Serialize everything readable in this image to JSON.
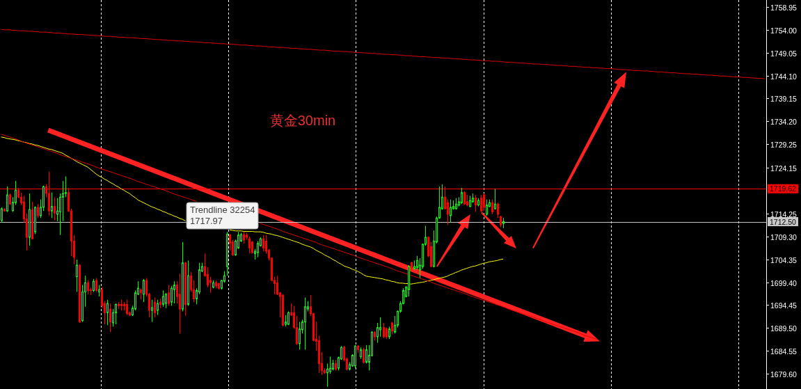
{
  "chart_data": {
    "type": "candlestick",
    "title": "黄金30min",
    "annotations": [
      "Trendline 32254\n1717.97"
    ],
    "categories": [
      null,
      null,
      null,
      null,
      null,
      null,
      null,
      null,
      null,
      null,
      null,
      null,
      null,
      null,
      null,
      null,
      null,
      null,
      null,
      null,
      null,
      null,
      null,
      null,
      null,
      null,
      null,
      null,
      null,
      null,
      null,
      null,
      null,
      null,
      null,
      null,
      null,
      null,
      null,
      null,
      null,
      null,
      null,
      null,
      null,
      null,
      null,
      null,
      null,
      null,
      null,
      null,
      null,
      null,
      null,
      null,
      null,
      null,
      null,
      null,
      null,
      null,
      null,
      null,
      null,
      null,
      null,
      null,
      null,
      null,
      null,
      null,
      null,
      null,
      null,
      null,
      null,
      null,
      null,
      null,
      null,
      null,
      null,
      null,
      null,
      null,
      null,
      null,
      null,
      null,
      null,
      null,
      null,
      null,
      null,
      null,
      null,
      null,
      null,
      null,
      null,
      null,
      null,
      null,
      null,
      null,
      null,
      null,
      null,
      null,
      null,
      null,
      null,
      null,
      null,
      null,
      null,
      null,
      null,
      null,
      null,
      null,
      null,
      null,
      null,
      null,
      null,
      null,
      null,
      null,
      null,
      null,
      null,
      null,
      null,
      null,
      null,
      null,
      null,
      null,
      null,
      null,
      null,
      null,
      null,
      null,
      null,
      null,
      null,
      null,
      null,
      null,
      null,
      null,
      null,
      null,
      null,
      null,
      null,
      null,
      null,
      null,
      null,
      null,
      null,
      null,
      null,
      null,
      null,
      null,
      null,
      null,
      null,
      null,
      null,
      null,
      null,
      null,
      null,
      null,
      null,
      null,
      null,
      null,
      null,
      null,
      null,
      null,
      null,
      null,
      null,
      null,
      null,
      null,
      null,
      null,
      null,
      null,
      null,
      null,
      null,
      null,
      null,
      null,
      null,
      null,
      null,
      null,
      null,
      null,
      null,
      null,
      null,
      null,
      null,
      null,
      null,
      null,
      null,
      null,
      null,
      null,
      null,
      null,
      null,
      null,
      null,
      null,
      null,
      null,
      null,
      null,
      null,
      null,
      null,
      null,
      null,
      null,
      null,
      null,
      null,
      null,
      null,
      null,
      null,
      null,
      null,
      null,
      null,
      null,
      null,
      null,
      null,
      null,
      null,
      null,
      null,
      null,
      null,
      null,
      null,
      null,
      null,
      null,
      null,
      null,
      null,
      null,
      null,
      null,
      null,
      null,
      null,
      null,
      null
    ],
    "ohlc": [
      [
        1712.8,
        1715.6,
        1712.3,
        1715.3
      ],
      [
        1715.2,
        1715.4,
        1714.7,
        1714.8
      ],
      [
        1714.8,
        1720.1,
        1714.6,
        1718.3
      ],
      [
        1718.3,
        1718.6,
        1716.1,
        1716.3
      ],
      [
        1714.9,
        1717.8,
        1714.6,
        1716.7
      ],
      [
        1716.6,
        1721.3,
        1716.1,
        1719.3
      ],
      [
        1719.3,
        1719.8,
        1717.6,
        1717.8
      ],
      [
        1717.8,
        1718.8,
        1716.1,
        1716.6
      ],
      [
        1716.8,
        1718.1,
        1712.3,
        1713.1
      ],
      [
        1713.1,
        1714.3,
        1706.3,
        1709.1
      ],
      [
        1709.1,
        1718.6,
        1707.3,
        1715.1
      ],
      [
        1715.1,
        1716.8,
        1708.6,
        1708.8
      ],
      [
        1710.3,
        1715.8,
        1709.8,
        1715.6
      ],
      [
        1715.6,
        1716.3,
        1713.3,
        1713.8
      ],
      [
        1713.8,
        1717.3,
        1713.3,
        1715.6
      ],
      [
        1715.6,
        1720.3,
        1714.8,
        1720.1
      ],
      [
        1720.1,
        1720.6,
        1717.8,
        1718.6
      ],
      [
        1718.6,
        1723.3,
        1713.8,
        1714.8
      ],
      [
        1714.8,
        1718.8,
        1713.3,
        1715.8
      ],
      [
        1715.8,
        1717.8,
        1712.8,
        1714.3
      ],
      [
        1714.1,
        1717.6,
        1712.6,
        1714.8
      ],
      [
        1714.6,
        1718.6,
        1709.6,
        1717.8
      ],
      [
        1717.8,
        1721.3,
        1712.6,
        1718.6
      ],
      [
        1718.6,
        1722.3,
        1717.8,
        1718.8
      ],
      [
        1718.8,
        1719.8,
        1714.6,
        1714.8
      ],
      [
        1714.8,
        1715.3,
        1705.1,
        1708.3
      ],
      [
        1708.3,
        1709.6,
        1703.3,
        1704.8
      ],
      [
        1700.6,
        1704.3,
        1697.3,
        1703.1
      ],
      [
        1703.1,
        1703.3,
        1690.6,
        1690.8
      ],
      [
        1691.1,
        1698.8,
        1690.8,
        1697.3
      ],
      [
        1697.3,
        1700.8,
        1694.1,
        1699.3
      ],
      [
        1699.3,
        1699.8,
        1696.8,
        1697.6
      ],
      [
        1697.8,
        1698.3,
        1696.6,
        1697.6
      ],
      [
        1697.6,
        1700.1,
        1697.3,
        1699.6
      ],
      [
        1699.8,
        1700.3,
        1697.3,
        1697.6
      ],
      [
        1697.3,
        1698.8,
        1696.3,
        1697.8
      ],
      [
        1697.8,
        1698.3,
        1693.8,
        1694.3
      ],
      [
        1694.8,
        1695.3,
        1690.3,
        1692.8
      ],
      [
        1692.8,
        1695.6,
        1690.1,
        1694.8
      ],
      [
        1693.6,
        1694.8,
        1688.6,
        1690.8
      ],
      [
        1690.6,
        1693.6,
        1689.8,
        1692.8
      ],
      [
        1692.8,
        1694.8,
        1690.3,
        1694.6
      ],
      [
        1694.6,
        1695.1,
        1693.6,
        1694.3
      ],
      [
        1694.6,
        1695.6,
        1693.3,
        1694.3
      ],
      [
        1694.6,
        1695.1,
        1693.3,
        1694.3
      ],
      [
        1694.6,
        1695.6,
        1692.3,
        1692.6
      ],
      [
        1692.8,
        1693.1,
        1692.1,
        1692.3
      ],
      [
        1692.3,
        1694.3,
        1692.1,
        1693.8
      ],
      [
        1693.6,
        1697.6,
        1693.3,
        1697.1
      ],
      [
        1696.8,
        1699.6,
        1696.6,
        1698.1
      ],
      [
        1697.8,
        1698.1,
        1695.6,
        1697.1
      ],
      [
        1696.8,
        1700.1,
        1695.1,
        1699.8
      ],
      [
        1699.8,
        1700.3,
        1696.3,
        1696.8
      ],
      [
        1696.8,
        1697.1,
        1691.8,
        1693.3
      ],
      [
        1693.3,
        1695.6,
        1690.8,
        1693.9
      ],
      [
        1695.1,
        1696.1,
        1691.8,
        1692.8
      ],
      [
        1693.3,
        1695.6,
        1692.3,
        1694.8
      ],
      [
        1695.1,
        1695.8,
        1693.8,
        1694.6
      ],
      [
        1694.6,
        1697.6,
        1694.1,
        1696.3
      ],
      [
        1694.8,
        1697.1,
        1693.8,
        1696.8
      ],
      [
        1697.1,
        1698.8,
        1694.3,
        1694.8
      ],
      [
        1695.1,
        1698.6,
        1694.3,
        1698.1
      ],
      [
        1697.8,
        1699.6,
        1694.8,
        1698.8
      ],
      [
        1698.8,
        1699.6,
        1694.8,
        1696.3
      ],
      [
        1696.8,
        1701.3,
        1688.3,
        1693.6
      ],
      [
        1693.6,
        1708.1,
        1693.1,
        1703.6
      ],
      [
        1703.6,
        1703.8,
        1692.1,
        1694.6
      ],
      [
        1694.6,
        1704.1,
        1694.3,
        1700.8
      ],
      [
        1700.8,
        1701.6,
        1697.3,
        1697.8
      ],
      [
        1697.8,
        1699.8,
        1695.1,
        1695.8
      ],
      [
        1695.8,
        1698.1,
        1694.6,
        1697.6
      ],
      [
        1697.3,
        1703.6,
        1696.8,
        1702.1
      ],
      [
        1701.8,
        1703.6,
        1701.6,
        1702.8
      ],
      [
        1702.8,
        1705.6,
        1700.6,
        1700.8
      ],
      [
        1701.1,
        1702.6,
        1698.3,
        1698.8
      ],
      [
        1699.8,
        1700.6,
        1697.1,
        1699.3
      ],
      [
        1698.3,
        1699.8,
        1698.1,
        1699.3
      ],
      [
        1699.3,
        1699.8,
        1698.1,
        1698.6
      ],
      [
        1699.1,
        1699.3,
        1697.8,
        1698.1
      ],
      [
        1698.1,
        1699.8,
        1697.8,
        1699.8
      ],
      [
        1699.6,
        1701.8,
        1699.3,
        1700.8
      ],
      [
        1702.8,
        1710.3,
        1700.8,
        1709.8
      ],
      [
        1709.6,
        1709.8,
        1706.3,
        1707.8
      ],
      [
        1708.1,
        1708.6,
        1705.1,
        1705.3
      ],
      [
        1705.3,
        1708.6,
        1705.1,
        1708.3
      ],
      [
        1706.8,
        1710.3,
        1706.6,
        1709.6
      ],
      [
        1708.3,
        1710.1,
        1708.1,
        1709.7
      ],
      [
        1709.7,
        1710.3,
        1707.8,
        1708.5
      ],
      [
        1709.6,
        1710.1,
        1708.6,
        1709.1
      ],
      [
        1708.8,
        1709.3,
        1705.6,
        1706.8
      ],
      [
        1708.1,
        1708.3,
        1705.6,
        1705.8
      ],
      [
        1705.6,
        1706.6,
        1704.3,
        1706.1
      ],
      [
        1705.8,
        1708.3,
        1704.8,
        1707.8
      ],
      [
        1707.3,
        1709.1,
        1707.1,
        1708.8
      ],
      [
        1708.8,
        1709.6,
        1706.1,
        1706.8
      ],
      [
        1708.3,
        1709.6,
        1705.6,
        1706.1
      ],
      [
        1706.3,
        1706.6,
        1704.1,
        1704.6
      ],
      [
        1704.6,
        1704.8,
        1699.6,
        1699.8
      ],
      [
        1699.8,
        1700.6,
        1696.8,
        1699.1
      ],
      [
        1699.3,
        1700.8,
        1696.6,
        1696.8
      ],
      [
        1697.1,
        1697.3,
        1691.8,
        1696.3
      ],
      [
        1696.6,
        1696.8,
        1689.8,
        1690.1
      ],
      [
        1690.3,
        1692.3,
        1689.8,
        1690.8
      ],
      [
        1690.3,
        1693.1,
        1690.1,
        1692.8
      ],
      [
        1692.8,
        1694.8,
        1692.1,
        1692.3
      ],
      [
        1692.8,
        1694.3,
        1689.3,
        1689.6
      ],
      [
        1689.6,
        1692.1,
        1685.8,
        1686.1
      ],
      [
        1686.1,
        1690.8,
        1684.8,
        1689.3
      ],
      [
        1689.1,
        1691.3,
        1688.3,
        1690.8
      ],
      [
        1690.8,
        1696.1,
        1684.8,
        1694.1
      ],
      [
        1693.6,
        1695.3,
        1693.1,
        1694.1
      ],
      [
        1694.1,
        1696.6,
        1692.1,
        1692.6
      ],
      [
        1692.6,
        1692.8,
        1686.6,
        1686.8
      ],
      [
        1687.1,
        1690.8,
        1684.6,
        1686.6
      ],
      [
        1686.8,
        1687.8,
        1679.8,
        1681.8
      ],
      [
        1681.8,
        1684.3,
        1679.3,
        1680.3
      ],
      [
        1680.3,
        1680.8,
        1679.6,
        1679.8
      ],
      [
        1679.8,
        1681.8,
        1676.8,
        1680.6
      ],
      [
        1680.1,
        1683.3,
        1679.6,
        1680.8
      ],
      [
        1680.6,
        1682.6,
        1680.3,
        1681.8
      ],
      [
        1681.8,
        1682.6,
        1680.3,
        1680.6
      ],
      [
        1680.8,
        1683.3,
        1680.3,
        1683.1
      ],
      [
        1682.8,
        1685.6,
        1682.6,
        1685.3
      ],
      [
        1685.3,
        1685.6,
        1682.3,
        1682.6
      ],
      [
        1682.8,
        1683.1,
        1680.3,
        1680.6
      ],
      [
        1680.6,
        1682.1,
        1680.3,
        1681.6
      ],
      [
        1681.3,
        1683.8,
        1681.1,
        1683.6
      ],
      [
        1681.3,
        1685.8,
        1680.8,
        1685.6
      ],
      [
        1685.6,
        1685.8,
        1684.1,
        1684.8
      ],
      [
        1683.3,
        1685.3,
        1682.8,
        1684.8
      ],
      [
        1684.8,
        1685.3,
        1681.8,
        1682.1
      ],
      [
        1682.1,
        1685.8,
        1681.8,
        1684.8
      ],
      [
        1682.1,
        1685.8,
        1680.3,
        1683.6
      ],
      [
        1683.6,
        1688.8,
        1683.3,
        1688.6
      ],
      [
        1688.6,
        1688.8,
        1686.8,
        1687.6
      ],
      [
        1687.6,
        1690.6,
        1686.3,
        1689.6
      ],
      [
        1689.1,
        1691.8,
        1687.6,
        1689.6
      ],
      [
        1689.6,
        1690.6,
        1687.3,
        1687.6
      ],
      [
        1689.3,
        1689.6,
        1687.1,
        1687.6
      ],
      [
        1687.6,
        1689.8,
        1687.1,
        1689.3
      ],
      [
        1690.6,
        1690.8,
        1688.1,
        1688.8
      ],
      [
        1688.6,
        1692.1,
        1688.3,
        1690.1
      ],
      [
        1690.1,
        1693.3,
        1689.6,
        1693.1
      ],
      [
        1693.1,
        1695.3,
        1692.8,
        1694.8
      ],
      [
        1694.8,
        1698.1,
        1694.6,
        1697.6
      ],
      [
        1696.3,
        1698.6,
        1696.1,
        1698.3
      ],
      [
        1697.8,
        1703.1,
        1696.3,
        1702.8
      ],
      [
        1703.6,
        1703.8,
        1702.1,
        1702.6
      ],
      [
        1702.3,
        1704.1,
        1702.1,
        1702.8
      ],
      [
        1702.6,
        1705.1,
        1702.1,
        1704.1
      ],
      [
        1702.1,
        1704.6,
        1700.3,
        1703.1
      ],
      [
        1702.8,
        1707.8,
        1702.3,
        1707.6
      ],
      [
        1707.6,
        1711.6,
        1707.3,
        1709.1
      ],
      [
        1709.1,
        1709.3,
        1704.8,
        1705.1
      ],
      [
        1707.1,
        1708.1,
        1702.6,
        1702.8
      ],
      [
        1702.8,
        1710.6,
        1702.6,
        1708.3
      ],
      [
        1708.1,
        1713.6,
        1707.8,
        1713.3
      ],
      [
        1713.3,
        1720.1,
        1713.1,
        1715.6
      ],
      [
        1715.3,
        1720.6,
        1715.1,
        1717.8
      ],
      [
        1717.8,
        1720.1,
        1715.1,
        1715.3
      ],
      [
        1716.6,
        1717.3,
        1711.8,
        1714.1
      ],
      [
        1713.8,
        1717.3,
        1712.3,
        1715.6
      ],
      [
        1715.3,
        1717.1,
        1715.1,
        1715.8
      ],
      [
        1715.3,
        1717.6,
        1715.1,
        1716.3
      ],
      [
        1716.1,
        1717.8,
        1715.8,
        1716.8
      ],
      [
        1716.6,
        1719.8,
        1716.3,
        1718.8
      ],
      [
        1718.8,
        1719.1,
        1716.1,
        1716.3
      ],
      [
        1716.8,
        1718.3,
        1715.8,
        1716.1
      ],
      [
        1715.8,
        1718.1,
        1715.6,
        1717.1
      ],
      [
        1716.8,
        1718.6,
        1716.6,
        1717.6
      ],
      [
        1717.6,
        1718.3,
        1714.6,
        1716.1
      ],
      [
        1716.1,
        1717.6,
        1715.8,
        1717.1
      ],
      [
        1717.6,
        1718.3,
        1714.6,
        1714.8
      ],
      [
        1718.3,
        1718.6,
        1714.8,
        1715.6
      ],
      [
        1714.1,
        1717.3,
        1713.8,
        1716.1
      ],
      [
        1715.8,
        1717.3,
        1715.6,
        1716.6
      ],
      [
        1716.6,
        1717.3,
        1714.1,
        1714.6
      ],
      [
        1715.3,
        1719.6,
        1715.1,
        1716.3
      ],
      [
        1716.3,
        1716.6,
        1713.3,
        1714.1
      ],
      [
        1713.6,
        1713.8,
        1711.3,
        1711.8
      ],
      [
        1712.1,
        1713.3,
        1711.1,
        1712.5
      ],
      null,
      null,
      null,
      null,
      null,
      null,
      null,
      null,
      null,
      null,
      null,
      null,
      null,
      null,
      null,
      null,
      null,
      null,
      null,
      null,
      null,
      null,
      null,
      null,
      null,
      null,
      null,
      null,
      null,
      null,
      null,
      null,
      null,
      null,
      null,
      null,
      null,
      null,
      null,
      null,
      null,
      null,
      null,
      null,
      null,
      null,
      null,
      null,
      null,
      null,
      null,
      null,
      null,
      null,
      null,
      null,
      null,
      null,
      null,
      null,
      null,
      null,
      null,
      null,
      null,
      null,
      null,
      null,
      null,
      null,
      null,
      null,
      null,
      null,
      null,
      null,
      null,
      null,
      null,
      null,
      null,
      null,
      null,
      null,
      null,
      null,
      null,
      null,
      null,
      null,
      null,
      null,
      null,
      null
    ],
    "colors": [
      "#00ff00",
      "#ff0000",
      "#00ff00",
      "#ff0000",
      "#00ff00",
      "#00ff00",
      "#ff0000",
      "#ff0000",
      "#ff0000",
      "#ff0000",
      "#00ff00",
      "#ff0000",
      "#00ff00",
      "#ff0000",
      "#00ff00",
      "#00ff00",
      "#ff0000",
      "#ff0000",
      "#00ff00",
      "#ff0000",
      "#00ff00",
      "#00ff00",
      "#00ff00",
      "#00ff00",
      "#ff0000",
      "#ff0000",
      "#ff0000",
      "#00ff00",
      "#ff0000",
      "#00ff00",
      "#00ff00",
      "#ff0000",
      "#ff0000",
      "#00ff00",
      "#ff0000",
      "#00ff00",
      "#ff0000",
      "#ff0000",
      "#00ff00",
      "#ff0000",
      "#00ff00",
      "#00ff00",
      "#ff0000",
      "#ff0000",
      "#ff0000",
      "#ff0000",
      "#ff0000",
      "#00ff00",
      "#00ff00",
      "#00ff00",
      "#ff0000",
      "#00ff00",
      "#ff0000",
      "#ff0000",
      "#00ff00",
      "#ff0000",
      "#00ff00",
      "#ff0000",
      "#00ff00",
      "#00ff00",
      "#ff0000",
      "#00ff00",
      "#00ff00",
      "#ff0000",
      "#ff0000",
      "#00ff00",
      "#ff0000",
      "#00ff00",
      "#ff0000",
      "#ff0000",
      "#00ff00",
      "#00ff00",
      "#00ff00",
      "#ff0000",
      "#ff0000",
      "#ff0000",
      "#00ff00",
      "#ff0000",
      "#ff0000",
      "#00ff00",
      "#00ff00",
      "#00ff00",
      "#ff0000",
      "#ff0000",
      "#00ff00",
      "#00ff00",
      "#00ff00",
      "#ff0000",
      "#ff0000",
      "#ff0000",
      "#ff0000",
      "#00ff00",
      "#00ff00",
      "#00ff00",
      "#ff0000",
      "#ff0000",
      "#ff0000",
      "#ff0000",
      "#ff0000",
      "#ff0000",
      "#ff0000",
      "#ff0000",
      "#00ff00",
      "#00ff00",
      "#ff0000",
      "#ff0000",
      "#ff0000",
      "#00ff00",
      "#00ff00",
      "#00ff00",
      "#00ff00",
      "#ff0000",
      "#ff0000",
      "#ff0000",
      "#ff0000",
      "#ff0000",
      "#ff0000",
      "#00ff00",
      "#00ff00",
      "#00ff00",
      "#ff0000",
      "#00ff00",
      "#00ff00",
      "#ff0000",
      "#ff0000",
      "#00ff00",
      "#00ff00",
      "#00ff00",
      "#ff0000",
      "#00ff00",
      "#ff0000",
      "#00ff00",
      "#00ff00",
      "#00ff00",
      "#ff0000",
      "#00ff00",
      "#00ff00",
      "#ff0000",
      "#ff0000",
      "#00ff00",
      "#ff0000",
      "#00ff00",
      "#00ff00",
      "#00ff00",
      "#00ff00",
      "#00ff00",
      "#00ff00",
      "#ff0000",
      "#00ff00",
      "#00ff00",
      "#00ff00",
      "#00ff00",
      "#00ff00",
      "#ff0000",
      "#ff0000",
      "#00ff00",
      "#00ff00",
      "#00ff00",
      "#00ff00",
      "#ff0000",
      "#ff0000",
      "#00ff00",
      "#00ff00",
      "#00ff00",
      "#00ff00",
      "#00ff00",
      "#ff0000",
      "#ff0000",
      "#00ff00",
      "#00ff00",
      "#ff0000",
      "#00ff00",
      "#ff0000",
      "#ff0000",
      "#00ff00",
      "#00ff00",
      "#ff0000",
      "#00ff00",
      "#ff0000",
      "#ff0000",
      "#00ff00",
      null,
      null,
      null,
      null,
      null,
      null,
      null,
      null,
      null,
      null,
      null,
      null,
      null,
      null,
      null,
      null,
      null,
      null,
      null,
      null,
      null,
      null,
      null,
      null,
      null,
      null,
      null,
      null,
      null,
      null,
      null,
      null,
      null,
      null,
      null,
      null,
      null,
      null,
      null,
      null,
      null,
      null,
      null,
      null,
      null,
      null,
      null,
      null,
      null,
      null,
      null,
      null,
      null,
      null,
      null,
      null,
      null,
      null,
      null,
      null,
      null,
      null,
      null,
      null,
      null,
      null,
      null,
      null,
      null,
      null,
      null,
      null,
      null,
      null,
      null,
      null,
      null,
      null,
      null,
      null,
      null,
      null,
      null,
      null,
      null,
      null,
      null,
      null,
      null,
      null,
      null,
      null,
      null,
      null
    ],
    "series": [
      {
        "type": "line",
        "color": "#ffff00",
        "values": [
          1730.8,
          1730.7,
          1730.5,
          1730.4,
          1730.3,
          1730.2,
          1730.0,
          1729.9,
          1729.7,
          1729.6,
          1729.4,
          1729.3,
          1729.1,
          1729.0,
          1728.8,
          1728.6,
          1728.4,
          1728.2,
          1728.1,
          1727.9,
          1727.7,
          1727.5,
          1727.3,
          1726.9,
          1726.6,
          1726.2,
          1725.9,
          1725.5,
          1725.2,
          1724.9,
          1724.6,
          1724.3,
          1723.8,
          1723.3,
          1722.8,
          1722.4,
          1722.1,
          1721.7,
          1721.4,
          1721.0,
          1720.7,
          1720.3,
          1720.0,
          1719.6,
          1719.3,
          1718.9,
          1718.6,
          1718.1,
          1717.7,
          1717.2,
          1716.9,
          1716.6,
          1716.3,
          1716.0,
          1715.7,
          1715.5,
          1715.2,
          1715.0,
          1714.7,
          1714.5,
          1714.2,
          1714.0,
          1713.7,
          1713.5,
          1713.2,
          1713.0,
          1712.7,
          null,
          null,
          null,
          null,
          null,
          null,
          null,
          null,
          null,
          null,
          null,
          null,
          null,
          null,
          null,
          1710.7,
          1710.6,
          1710.5,
          1710.5,
          1710.5,
          1710.4,
          1710.4,
          1710.4,
          1710.4,
          1710.3,
          1710.3,
          1710.3,
          1710.2,
          1710.0,
          1709.9,
          1709.8,
          1709.6,
          1709.5,
          1709.3,
          1709.1,
          1708.9,
          1708.7,
          1708.5,
          1708.3,
          1708.1,
          1707.9,
          1707.6,
          1707.4,
          1707.2,
          1707.0,
          1706.7,
          1706.3,
          1706.0,
          1705.7,
          1705.3,
          1705.0,
          1704.7,
          1704.3,
          1704.0,
          1703.6,
          1703.3,
          1702.9,
          1702.7,
          1702.5,
          1702.2,
          1702.0,
          1701.7,
          1701.4,
          1701.0,
          1700.7,
          1700.6,
          1700.5,
          1700.4,
          1700.3,
          1700.2,
          1700.1,
          1699.9,
          1699.8,
          1699.6,
          1699.5,
          1699.3,
          1699.2,
          1699.2,
          1699.1,
          1699.1,
          1699.0,
          1699.1,
          1699.2,
          1699.3,
          1699.4,
          1699.5,
          1699.7,
          1699.8,
          1699.9,
          1700.1,
          1700.2,
          1700.4,
          1700.5,
          1700.7,
          1701.0,
          1701.2,
          1701.5,
          1701.7,
          1702.0,
          1702.2,
          1702.4,
          1702.6,
          1702.8,
          1702.9,
          1703.1,
          1703.3,
          1703.5,
          1703.6,
          1703.8,
          1703.9,
          1704.0,
          1704.1,
          1704.3,
          1704.4,
          null,
          null,
          null,
          null,
          null,
          null,
          null,
          null,
          null,
          null,
          null,
          null,
          null,
          null,
          null,
          null,
          null,
          null,
          null,
          null,
          null,
          null,
          null,
          null,
          null,
          null,
          null,
          null,
          null,
          null,
          null,
          null,
          null,
          null,
          null,
          null,
          null,
          null,
          null,
          null,
          null,
          null,
          null,
          null,
          null,
          null,
          null,
          null,
          null,
          null,
          null,
          null,
          null,
          null,
          null,
          null,
          null,
          null,
          null,
          null,
          null,
          null,
          null,
          null,
          null,
          null,
          null,
          null,
          null,
          null,
          null,
          null,
          null,
          null,
          null,
          null,
          null,
          null,
          null,
          null,
          null,
          null,
          null,
          null,
          null,
          null,
          null,
          null,
          null,
          null,
          null,
          null,
          null,
          null
        ]
      },
      {
        "type": "line",
        "color": "#e00000",
        "values": [
          1731.4,
          1731.2,
          1731.0,
          1730.8,
          1730.6,
          1730.4,
          1730.2,
          1729.9,
          1729.7,
          1729.5,
          1729.3,
          1729.1,
          1728.9,
          1728.7,
          1728.5,
          1728.3,
          1728.1,
          1727.9,
          1727.7,
          1727.5,
          1727.3,
          1727.0,
          1726.8,
          1726.6,
          1726.4,
          1726.2,
          1726.0,
          1725.8,
          1725.6,
          1725.4,
          1725.2,
          1725.0,
          1724.8,
          1724.6,
          1724.3,
          1724.1,
          1723.9,
          1723.7,
          1723.5,
          1723.3,
          1723.1,
          1722.9,
          1722.7,
          1722.5,
          1722.3,
          1722.1,
          1721.9,
          1721.7,
          1721.4,
          1721.2,
          1721.0,
          1720.8,
          1720.6,
          1720.4,
          1720.2,
          1720.0,
          1719.8,
          1719.6,
          1719.4,
          1719.2,
          1719.0,
          1718.7,
          1718.5,
          1718.3,
          1718.1,
          1717.9,
          1717.7,
          1717.5,
          1717.3,
          1717.1,
          1716.9,
          null,
          null,
          null,
          null,
          null,
          null,
          null,
          null,
          null,
          null,
          null,
          null,
          null,
          null,
          null,
          null,
          null,
          null,
          null,
          null,
          null,
          null,
          1712.1,
          1711.9,
          1711.7,
          1711.5,
          1711.3,
          1711.1,
          1710.9,
          1710.7,
          1710.4,
          1710.2,
          1710.0,
          1709.8,
          1709.6,
          1709.4,
          1709.2,
          1709.0,
          1708.8,
          1708.6,
          1708.4,
          1708.2,
          1708.0,
          1707.7,
          1707.5,
          1707.3,
          1707.1,
          1706.9,
          1706.7,
          1706.5,
          1706.3,
          1706.1,
          1705.9,
          1705.7,
          1705.5,
          1705.3,
          1705.1,
          1704.8,
          1704.6,
          1704.4,
          1704.2,
          1704.0,
          1703.8,
          1703.6,
          1703.4,
          1703.2,
          1703.0,
          1702.8,
          1702.6,
          1702.4,
          1702.1,
          1701.9,
          1701.7,
          1701.5,
          1701.3,
          1701.1,
          1700.9,
          1700.7,
          1700.5,
          1700.3,
          1700.1,
          1699.9,
          1699.7,
          1699.5,
          1699.2,
          1699.0,
          1698.8,
          1698.6,
          1698.4,
          1698.2,
          1698.0,
          1697.8,
          1697.6,
          1697.4,
          1697.2,
          1697.0,
          1696.8,
          1696.5,
          1696.3,
          1696.1,
          1695.9,
          1695.7,
          1695.5,
          1695.3,
          1695.1,
          1694.9,
          1694.7,
          1694.5,
          1694.3,
          1694.1,
          1693.9,
          1693.6,
          1693.4,
          1693.2,
          1693.0,
          1692.8,
          1692.6,
          1692.4,
          1692.2,
          1692.0,
          1691.8,
          1691.6,
          1691.4,
          1691.2,
          1690.9,
          1690.7,
          1690.5,
          1690.3,
          1690.1,
          1689.9,
          1689.7,
          1689.5,
          1689.3,
          1689.1,
          1688.9,
          1688.7,
          1688.5,
          1688.2,
          1688.0,
          1687.8,
          1687.6,
          1687.4,
          1687.2,
          1687.0,
          null,
          null,
          null,
          null,
          null,
          null,
          null,
          null,
          null,
          null,
          null,
          null,
          null,
          null,
          null,
          null,
          null,
          null,
          null,
          null,
          null,
          null,
          null,
          null,
          null,
          null,
          null,
          null,
          null,
          null,
          null,
          null,
          null,
          null,
          null,
          null,
          null,
          null,
          null,
          null,
          null,
          null,
          null,
          null,
          null,
          null,
          null,
          null,
          null,
          null,
          null,
          null,
          null,
          null,
          null,
          null,
          null,
          null,
          null,
          null
        ]
      },
      {
        "type": "line",
        "color": "#e00000",
        "values": [
          1754.1,
          1754.0,
          1754.0,
          1754.0,
          1753.9,
          1753.9,
          1753.8,
          1753.8,
          1753.8,
          1753.7,
          1753.7,
          1753.7,
          1753.6,
          1753.6,
          1753.5,
          1753.5,
          1753.5,
          1753.4,
          1753.4,
          1753.3,
          1753.3,
          1753.3,
          1753.2,
          1753.2,
          1753.1,
          1753.1,
          1753.1,
          1753.0,
          1753.0,
          1753.0,
          1752.9,
          1752.9,
          1752.8,
          1752.8,
          1752.8,
          1752.7,
          1752.7,
          1752.6,
          1752.6,
          1752.6,
          1752.5,
          1752.5,
          1752.4,
          1752.4,
          1752.4,
          1752.3,
          1752.3,
          1752.3,
          1752.2,
          1752.2,
          1752.1,
          1752.1,
          1752.1,
          1752.0,
          1752.0,
          1751.9,
          1751.9,
          1751.9,
          1751.8,
          1751.8,
          1751.7,
          1751.7,
          1751.7,
          1751.6,
          1751.6,
          1751.6,
          1751.5,
          1751.5,
          1751.4,
          1751.4,
          1751.4,
          1751.3,
          1751.3,
          1751.2,
          1751.2,
          1751.2,
          1751.1,
          1751.1,
          1751.0,
          1751.0,
          1751.0,
          1750.9,
          1750.9,
          1750.9,
          1750.8,
          1750.8,
          1750.7,
          1750.7,
          1750.7,
          1750.6,
          1750.6,
          1750.5,
          1750.5,
          1750.5,
          1750.4,
          1750.4,
          1750.3,
          1750.3,
          1750.3,
          1750.2,
          1750.2,
          1750.2,
          1750.1,
          1750.1,
          1750.0,
          1750.0,
          1750.0,
          1749.9,
          1749.9,
          1749.8,
          1749.8,
          1749.8,
          1749.7,
          1749.7,
          1749.6,
          1749.6,
          1749.6,
          1749.5,
          1749.5,
          1749.4,
          1749.4,
          1749.4,
          1749.3,
          1749.3,
          1749.3,
          1749.2,
          1749.2,
          1749.1,
          1749.1,
          1749.1,
          1749.0,
          1749.0,
          1748.9,
          1748.9,
          1748.9,
          1748.8,
          1748.8,
          1748.7,
          1748.7,
          1748.7,
          1748.6,
          1748.6,
          1748.6,
          1748.5,
          1748.5,
          1748.4,
          1748.4,
          1748.4,
          1748.3,
          1748.3,
          1748.2,
          1748.2,
          1748.2,
          1748.1,
          1748.1,
          1748.0,
          1748.0,
          1748.0,
          1747.9,
          1747.9,
          1747.9,
          1747.8,
          1747.8,
          1747.7,
          1747.7,
          1747.7,
          1747.6,
          1747.6,
          1747.5,
          1747.5,
          1747.5,
          1747.4,
          1747.4,
          1747.3,
          1747.3,
          1747.3,
          1747.2,
          1747.2,
          1747.2,
          1747.1,
          1747.1,
          1747.0,
          1747.0,
          1747.0,
          1746.9,
          1746.9,
          1746.8,
          1746.8,
          1746.8,
          1746.7,
          1746.7,
          1746.6,
          1746.6,
          1746.6,
          1746.5,
          1746.5,
          1746.5,
          1746.4,
          1746.4,
          1746.3,
          1746.3,
          1746.3,
          1746.2,
          1746.2,
          1746.1,
          1746.1,
          1746.1,
          1746.0,
          1746.0,
          1745.9,
          1745.9,
          1745.9,
          1745.8,
          1745.8,
          1745.8,
          1745.7,
          1745.7,
          1745.6,
          1745.6,
          1745.6,
          1745.5,
          1745.5,
          1745.4,
          1745.4,
          1745.4,
          1745.3,
          1745.3,
          1745.2,
          1745.2,
          1745.2,
          1745.1,
          1745.1,
          1745.1,
          1745.0,
          1745.0,
          1744.9,
          1744.9,
          1744.9,
          1744.8,
          1744.8,
          1744.7,
          1744.7,
          1744.7,
          1744.6,
          1744.6,
          1744.5,
          1744.5,
          1744.5,
          1744.4,
          1744.4,
          1744.4,
          1744.3,
          1744.3,
          1744.2,
          1744.2,
          1744.2,
          1744.1,
          1744.1,
          1744.0,
          1744.0,
          1744.0,
          1743.9,
          1743.9,
          1743.8,
          1743.8,
          1743.8,
          1743.7,
          1743.7,
          1743.7,
          1743.6,
          1743.6,
          1743.5,
          1743.5,
          1743.5,
          1743.4
        ]
      }
    ],
    "ref_lines": [
      {
        "axis": "y",
        "value": 1719.62,
        "label": "1719.62",
        "color": "#ff0000"
      },
      {
        "axis": "y",
        "value": 1712.5,
        "label": "1712.50",
        "color": "#c8c8c8"
      }
    ],
    "ylim": [
      1676.3,
      1760.45
    ],
    "yticks": [
      1758.95,
      {
        "value": 1754,
        "label": "1754.00"
      },
      1749.05,
      {
        "value": 1744.1,
        "label": "1744.10"
      },
      1739.15,
      {
        "value": 1734.2,
        "label": "1734.20"
      },
      1729.25,
      1724.15,
      1714.25,
      {
        "value": 1709.3,
        "label": "1709.30"
      },
      1704.35,
      {
        "value": 1699.4,
        "label": "1699.40"
      },
      1694.45,
      {
        "value": 1689.5,
        "label": "1689.50"
      },
      1684.55,
      {
        "value": 1679.6,
        "label": "1679.60"
      }
    ],
    "tick_labels": "y",
    "grid": "x"
  }
}
